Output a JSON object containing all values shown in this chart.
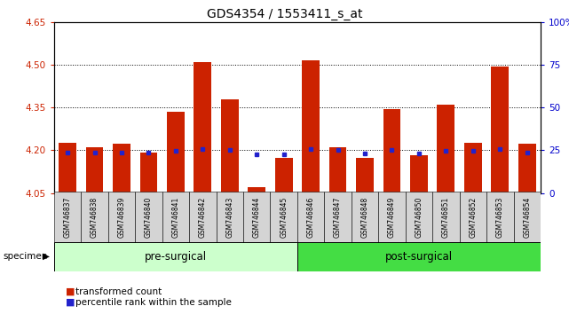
{
  "title": "GDS4354 / 1553411_s_at",
  "samples": [
    "GSM746837",
    "GSM746838",
    "GSM746839",
    "GSM746840",
    "GSM746841",
    "GSM746842",
    "GSM746843",
    "GSM746844",
    "GSM746845",
    "GSM746846",
    "GSM746847",
    "GSM746848",
    "GSM746849",
    "GSM746850",
    "GSM746851",
    "GSM746852",
    "GSM746853",
    "GSM746854"
  ],
  "bar_values": [
    4.225,
    4.21,
    4.222,
    4.193,
    4.335,
    4.51,
    4.38,
    4.072,
    4.173,
    4.515,
    4.21,
    4.172,
    4.343,
    4.183,
    4.36,
    4.225,
    4.495,
    4.222
  ],
  "percentile_values": [
    4.192,
    4.192,
    4.192,
    4.192,
    4.198,
    4.205,
    4.202,
    4.186,
    4.187,
    4.205,
    4.203,
    4.188,
    4.2,
    4.188,
    4.198,
    4.198,
    4.205,
    4.192
  ],
  "bar_color": "#CC2200",
  "dot_color": "#2222CC",
  "baseline": 4.05,
  "ylim_left": [
    4.05,
    4.65
  ],
  "ylim_right": [
    0,
    100
  ],
  "yticks_left": [
    4.05,
    4.2,
    4.35,
    4.5,
    4.65
  ],
  "yticks_right": [
    0,
    25,
    50,
    75,
    100
  ],
  "grid_lines": [
    4.2,
    4.35,
    4.5
  ],
  "groups": [
    {
      "label": "pre-surgical",
      "start": 0,
      "end": 9,
      "color": "#CCFFCC"
    },
    {
      "label": "post-surgical",
      "start": 9,
      "end": 18,
      "color": "#44DD44"
    }
  ],
  "specimen_label": "specimen",
  "legend_items": [
    {
      "label": "transformed count",
      "color": "#CC2200"
    },
    {
      "label": "percentile rank within the sample",
      "color": "#2222CC"
    }
  ],
  "title_fontsize": 10,
  "axis_color_left": "#CC2200",
  "axis_color_right": "#0000CC"
}
